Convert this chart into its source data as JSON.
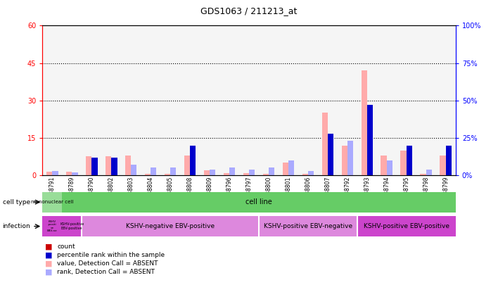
{
  "title": "GDS1063 / 211213_at",
  "samples": [
    "GSM38791",
    "GSM38789",
    "GSM38790",
    "GSM38802",
    "GSM38803",
    "GSM38804",
    "GSM38805",
    "GSM38808",
    "GSM38809",
    "GSM38796",
    "GSM38797",
    "GSM38800",
    "GSM38801",
    "GSM38806",
    "GSM38807",
    "GSM38792",
    "GSM38793",
    "GSM38794",
    "GSM38795",
    "GSM38798",
    "GSM38799"
  ],
  "count_values": [
    1.5,
    1.5,
    7.5,
    7.5,
    8,
    0.5,
    0.5,
    8,
    2,
    1,
    1,
    0.5,
    5,
    0.5,
    25,
    12,
    42,
    8,
    10,
    0.5,
    8
  ],
  "rank_values": [
    3,
    2,
    12,
    12,
    7,
    5,
    5,
    20,
    4,
    5,
    4,
    5,
    10,
    3,
    28,
    23,
    47,
    10,
    20,
    4,
    20
  ],
  "count_absent": [
    true,
    true,
    true,
    true,
    true,
    true,
    true,
    true,
    true,
    true,
    true,
    true,
    true,
    true,
    true,
    true,
    true,
    true,
    true,
    true,
    true
  ],
  "rank_absent": [
    true,
    true,
    false,
    false,
    true,
    true,
    true,
    false,
    true,
    true,
    true,
    true,
    true,
    true,
    false,
    true,
    false,
    true,
    false,
    true,
    false
  ],
  "ylim_left": [
    0,
    60
  ],
  "ylim_right": [
    0,
    100
  ],
  "yticks_left": [
    0,
    15,
    30,
    45,
    60
  ],
  "yticks_right": [
    0,
    25,
    50,
    75,
    100
  ],
  "ytick_labels_left": [
    "0",
    "15",
    "30",
    "45",
    "60"
  ],
  "ytick_labels_right": [
    "0%",
    "25%",
    "50%",
    "75%",
    "100%"
  ],
  "color_count": "#cc0000",
  "color_rank": "#0000cc",
  "color_count_absent": "#ffaaaa",
  "color_rank_absent": "#aaaaff",
  "color_cell_type_mono": "#99dd99",
  "color_cell_type_line": "#66cc66",
  "color_infection_magenta": "#cc44cc",
  "color_infection_pink": "#dd88dd",
  "bar_width": 0.3,
  "legend_items": [
    {
      "label": "count",
      "color": "#cc0000"
    },
    {
      "label": "percentile rank within the sample",
      "color": "#0000cc"
    },
    {
      "label": "value, Detection Call = ABSENT",
      "color": "#ffaaaa"
    },
    {
      "label": "rank, Detection Call = ABSENT",
      "color": "#aaaaff"
    }
  ]
}
